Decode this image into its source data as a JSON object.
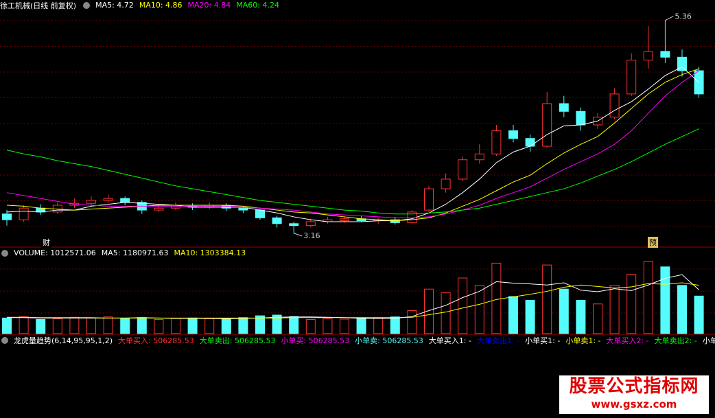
{
  "header": {
    "title": "徐工机械(日线 前复权)",
    "items": [
      {
        "text": "MA5: 4.72",
        "color": "#ffffff"
      },
      {
        "text": "MA10: 4.86",
        "color": "#ffff00"
      },
      {
        "text": "MA20: 4.84",
        "color": "#ff00ff"
      },
      {
        "text": "MA60: 4.24",
        "color": "#00ff00"
      }
    ]
  },
  "markers": [
    "财",
    "预"
  ],
  "chart_data": [
    {
      "type": "candlestick",
      "up_color": "#ff3232",
      "down_color": "#54fcfc",
      "ylim": [
        3.06,
        5.5
      ],
      "open": [
        3.36,
        3.3,
        3.42,
        3.38,
        3.45,
        3.47,
        3.5,
        3.52,
        3.48,
        3.4,
        3.42,
        3.44,
        3.43,
        3.45,
        3.42,
        3.4,
        3.32,
        3.26,
        3.24,
        3.28,
        3.29,
        3.31,
        3.29,
        3.3,
        3.27,
        3.4,
        3.62,
        3.72,
        3.92,
        3.98,
        4.22,
        4.14,
        4.06,
        4.5,
        4.42,
        4.28,
        4.36,
        4.6,
        4.95,
        5.04,
        4.98,
        4.84
      ],
      "high": [
        3.4,
        3.45,
        3.46,
        3.48,
        3.52,
        3.54,
        3.56,
        3.54,
        3.5,
        3.46,
        3.48,
        3.47,
        3.48,
        3.47,
        3.44,
        3.41,
        3.34,
        3.28,
        3.31,
        3.33,
        3.33,
        3.34,
        3.32,
        3.33,
        3.4,
        3.65,
        3.78,
        3.95,
        4.08,
        4.28,
        4.28,
        4.18,
        4.62,
        4.58,
        4.46,
        4.4,
        4.66,
        5.02,
        5.3,
        5.36,
        5.06,
        4.88
      ],
      "low": [
        3.24,
        3.28,
        3.35,
        3.36,
        3.42,
        3.44,
        3.47,
        3.45,
        3.36,
        3.38,
        3.4,
        3.4,
        3.41,
        3.39,
        3.37,
        3.3,
        3.22,
        3.16,
        3.22,
        3.26,
        3.27,
        3.28,
        3.26,
        3.25,
        3.26,
        3.38,
        3.58,
        3.7,
        3.88,
        3.96,
        4.1,
        4.0,
        4.04,
        4.36,
        4.22,
        4.24,
        4.34,
        4.58,
        4.86,
        4.92,
        4.78,
        4.56
      ],
      "close": [
        3.3,
        3.42,
        3.38,
        3.45,
        3.47,
        3.5,
        3.52,
        3.48,
        3.4,
        3.42,
        3.44,
        3.43,
        3.45,
        3.42,
        3.4,
        3.32,
        3.26,
        3.24,
        3.28,
        3.3,
        3.31,
        3.29,
        3.3,
        3.27,
        3.38,
        3.62,
        3.72,
        3.92,
        3.98,
        4.22,
        4.14,
        4.06,
        4.5,
        4.42,
        4.28,
        4.36,
        4.6,
        4.95,
        5.04,
        4.98,
        4.84,
        4.6
      ],
      "series": [
        {
          "name": "MA5",
          "color": "#ffffff",
          "values": [
            3.38,
            3.39,
            3.38,
            3.4,
            3.4,
            3.44,
            3.46,
            3.48,
            3.47,
            3.46,
            3.45,
            3.43,
            3.43,
            3.43,
            3.43,
            3.4,
            3.37,
            3.33,
            3.3,
            3.28,
            3.28,
            3.28,
            3.29,
            3.29,
            3.31,
            3.37,
            3.46,
            3.58,
            3.72,
            3.89,
            4.0,
            4.06,
            4.18,
            4.27,
            4.28,
            4.32,
            4.43,
            4.52,
            4.65,
            4.79,
            4.88,
            4.72
          ]
        },
        {
          "name": "MA10",
          "color": "#ffff00",
          "values": [
            3.45,
            3.44,
            3.42,
            3.41,
            3.4,
            3.41,
            3.42,
            3.43,
            3.44,
            3.45,
            3.45,
            3.45,
            3.45,
            3.45,
            3.44,
            3.42,
            3.4,
            3.38,
            3.37,
            3.35,
            3.33,
            3.31,
            3.3,
            3.29,
            3.3,
            3.32,
            3.37,
            3.44,
            3.51,
            3.6,
            3.69,
            3.76,
            3.88,
            3.99,
            4.08,
            4.16,
            4.3,
            4.45,
            4.6,
            4.72,
            4.8,
            4.86
          ]
        },
        {
          "name": "MA20",
          "color": "#ff00ff",
          "values": [
            3.58,
            3.55,
            3.52,
            3.49,
            3.46,
            3.45,
            3.44,
            3.44,
            3.44,
            3.44,
            3.44,
            3.44,
            3.44,
            3.44,
            3.43,
            3.42,
            3.41,
            3.4,
            3.38,
            3.36,
            3.35,
            3.34,
            3.33,
            3.32,
            3.32,
            3.33,
            3.36,
            3.4,
            3.45,
            3.52,
            3.58,
            3.64,
            3.73,
            3.82,
            3.9,
            3.98,
            4.08,
            4.22,
            4.4,
            4.58,
            4.72,
            4.84
          ]
        },
        {
          "name": "MA60",
          "color": "#00ff00",
          "values": [
            4.02,
            3.98,
            3.95,
            3.91,
            3.88,
            3.85,
            3.81,
            3.77,
            3.73,
            3.69,
            3.65,
            3.62,
            3.59,
            3.56,
            3.53,
            3.5,
            3.48,
            3.46,
            3.44,
            3.42,
            3.4,
            3.39,
            3.37,
            3.36,
            3.36,
            3.37,
            3.38,
            3.4,
            3.42,
            3.46,
            3.5,
            3.54,
            3.58,
            3.62,
            3.68,
            3.75,
            3.82,
            3.9,
            3.99,
            4.08,
            4.16,
            4.24
          ]
        }
      ]
    },
    {
      "type": "volume",
      "ylim": [
        0,
        2000000
      ],
      "items": [
        {
          "text": "VOLUME: 1012571.06",
          "color": "#ffffff"
        },
        {
          "text": "MA5: 1180971.63",
          "color": "#ffffff"
        },
        {
          "text": "MA10: 1303384.13",
          "color": "#ffff00"
        }
      ],
      "values": [
        420000,
        460000,
        380000,
        400000,
        440000,
        420000,
        450000,
        400000,
        430000,
        380000,
        410000,
        420000,
        400000,
        390000,
        430000,
        480000,
        500000,
        460000,
        380000,
        400000,
        390000,
        420000,
        430000,
        450000,
        620000,
        1200000,
        1100000,
        1500000,
        1300000,
        1900000,
        1000000,
        900000,
        1850000,
        1200000,
        900000,
        800000,
        1300000,
        1600000,
        1950000,
        1800000,
        1300000,
        1012571.06
      ],
      "series": [
        {
          "name": "MA5",
          "color": "#ffffff",
          "values": [
            430000,
            430000,
            420000,
            420000,
            420000,
            420000,
            420000,
            420000,
            430000,
            420000,
            410000,
            410000,
            410000,
            400000,
            410000,
            420000,
            440000,
            450000,
            450000,
            440000,
            430000,
            410000,
            400000,
            410000,
            460000,
            620000,
            760000,
            970000,
            1140000,
            1400000,
            1360000,
            1340000,
            1310000,
            1370000,
            1170000,
            1130000,
            1210000,
            1160000,
            1310000,
            1490000,
            1590000,
            1180971.63
          ]
        },
        {
          "name": "MA10",
          "color": "#ffff00",
          "values": [
            440000,
            440000,
            430000,
            430000,
            430000,
            430000,
            420000,
            420000,
            420000,
            420000,
            420000,
            420000,
            420000,
            420000,
            420000,
            420000,
            420000,
            430000,
            430000,
            430000,
            430000,
            430000,
            430000,
            430000,
            440000,
            510000,
            580000,
            690000,
            790000,
            920000,
            990000,
            1060000,
            1140000,
            1250000,
            1310000,
            1270000,
            1230000,
            1260000,
            1350000,
            1330000,
            1370000,
            1303384.13
          ]
        }
      ]
    }
  ],
  "indicator": {
    "title": "龙虎量趋势(6,14,95,95,1,2)",
    "items": [
      {
        "text": "大单买入: 506285.53",
        "color": "#ff3232"
      },
      {
        "text": "大单卖出: 506285.53",
        "color": "#00ff00"
      },
      {
        "text": "小单买: 506285.53",
        "color": "#ff00ff"
      },
      {
        "text": "小单卖: 506285.53",
        "color": "#54fcfc"
      },
      {
        "text": "大单买入1: -",
        "color": "#ffffff"
      },
      {
        "text": "大单卖出1: -",
        "color": "#0000ff"
      },
      {
        "text": "小单买1: -",
        "color": "#ffffff"
      },
      {
        "text": "小单卖1: -",
        "color": "#ffff00"
      },
      {
        "text": "大单买入2: -",
        "color": "#ff00ff"
      },
      {
        "text": "大单卖出2: -",
        "color": "#00ff00"
      },
      {
        "text": "小单买",
        "color": "#ffffff"
      }
    ]
  },
  "watermark": {
    "title": "股票公式指标网",
    "url": "www.gsxz.com"
  }
}
